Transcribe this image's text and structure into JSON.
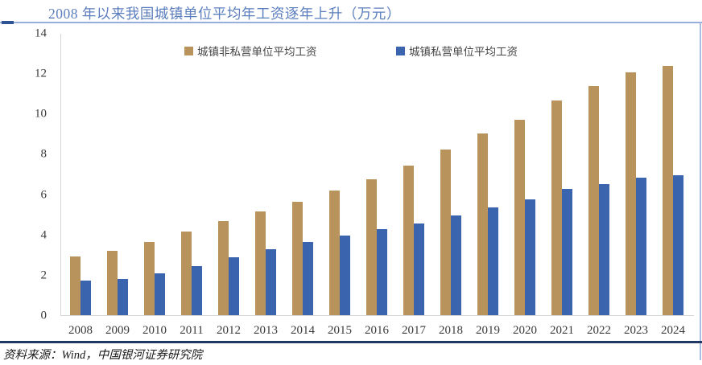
{
  "title": "2008 年以来我国城镇单位平均年工资逐年上升（万元）",
  "source": "资料来源：Wind，中国银河证券研究院",
  "chart_data": {
    "type": "bar",
    "title": "2008 年以来我国城镇单位平均年工资逐年上升（万元）",
    "unit": "万元",
    "categories": [
      "2008",
      "2009",
      "2010",
      "2011",
      "2012",
      "2013",
      "2014",
      "2015",
      "2016",
      "2017",
      "2018",
      "2019",
      "2020",
      "2021",
      "2022",
      "2023",
      "2024"
    ],
    "series": [
      {
        "name": "城镇非私营单位平均工资",
        "color": "#B8945C",
        "values": [
          2.92,
          3.22,
          3.65,
          4.18,
          4.68,
          5.15,
          5.64,
          6.2,
          6.76,
          7.43,
          8.25,
          9.05,
          9.74,
          10.68,
          11.4,
          12.07,
          12.41
        ]
      },
      {
        "name": "城镇私营单位平均工资",
        "color": "#3A64AE",
        "values": [
          1.71,
          1.82,
          2.08,
          2.46,
          2.88,
          3.27,
          3.64,
          3.96,
          4.28,
          4.58,
          4.96,
          5.36,
          5.77,
          6.29,
          6.52,
          6.83,
          6.95
        ]
      }
    ],
    "xlabel": "",
    "ylabel": "",
    "ylim": [
      0,
      14
    ],
    "yticks": [
      0,
      2,
      4,
      6,
      8,
      10,
      12,
      14
    ],
    "grid": false,
    "legend_position": "top-inside"
  },
  "colors": {
    "title_text": "#5B7EBE",
    "header_rule": "#95AEDC",
    "header_dash": "#2E5496",
    "bottom_rule": "#1F3864",
    "right_border": "#A9BDE0",
    "axis_line": "#D6D6D6",
    "tick_text": "#3A3A3A"
  }
}
